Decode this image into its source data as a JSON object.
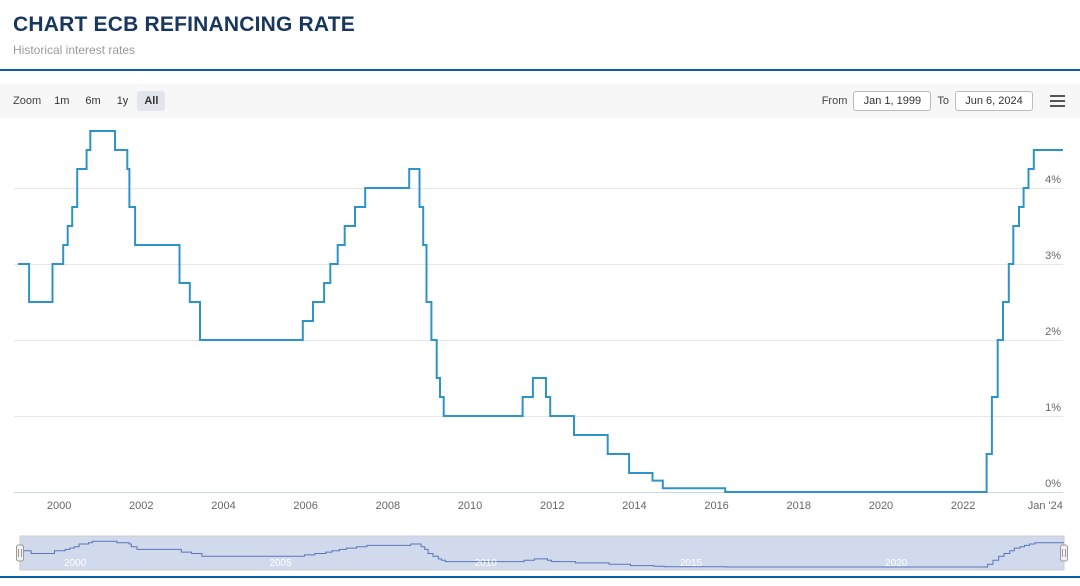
{
  "page": {
    "title": "CHART ECB REFINANCING RATE",
    "subtitle": "Historical interest rates"
  },
  "colors": {
    "accent_divider": "#0d5ea8",
    "title_text": "#17375e",
    "series_line": "#2e93c8",
    "navigator_line": "#5b74b8",
    "gridline": "#e6e6e6",
    "axis_line": "#ccd6eb"
  },
  "toolbar": {
    "zoom_label": "Zoom",
    "zoom_buttons": [
      "1m",
      "6m",
      "1y",
      "All"
    ],
    "active_zoom": "All",
    "from_label": "From",
    "from_value": "Jan 1, 1999",
    "to_label": "To",
    "to_value": "Jun 6, 2024",
    "menu_icon": "hamburger-menu-icon"
  },
  "chart_data": {
    "type": "line",
    "step": "left",
    "title": "",
    "xlabel": "",
    "ylabel": "",
    "legend": false,
    "grid": true,
    "x_range": [
      1999.0,
      2024.43
    ],
    "x_end": 2024.43,
    "y_range": [
      0,
      4.9
    ],
    "y_unit": "%",
    "series": [
      {
        "name": "ECB Refinancing Rate",
        "color": "#2e93c8",
        "points": [
          [
            1999.0,
            3.0
          ],
          [
            1999.27,
            2.5
          ],
          [
            1999.84,
            3.0
          ],
          [
            2000.1,
            3.25
          ],
          [
            2000.21,
            3.5
          ],
          [
            2000.32,
            3.75
          ],
          [
            2000.44,
            4.25
          ],
          [
            2000.67,
            4.5
          ],
          [
            2000.76,
            4.75
          ],
          [
            2001.36,
            4.5
          ],
          [
            2001.66,
            4.25
          ],
          [
            2001.71,
            3.75
          ],
          [
            2001.85,
            3.25
          ],
          [
            2002.93,
            2.75
          ],
          [
            2003.18,
            2.5
          ],
          [
            2003.43,
            2.0
          ],
          [
            2005.93,
            2.25
          ],
          [
            2006.18,
            2.5
          ],
          [
            2006.45,
            2.75
          ],
          [
            2006.6,
            3.0
          ],
          [
            2006.78,
            3.25
          ],
          [
            2006.95,
            3.5
          ],
          [
            2007.2,
            3.75
          ],
          [
            2007.45,
            4.0
          ],
          [
            2008.52,
            4.25
          ],
          [
            2008.77,
            3.75
          ],
          [
            2008.86,
            3.25
          ],
          [
            2008.94,
            2.5
          ],
          [
            2009.06,
            2.0
          ],
          [
            2009.19,
            1.5
          ],
          [
            2009.27,
            1.25
          ],
          [
            2009.36,
            1.0
          ],
          [
            2011.28,
            1.25
          ],
          [
            2011.53,
            1.5
          ],
          [
            2011.85,
            1.25
          ],
          [
            2011.95,
            1.0
          ],
          [
            2012.53,
            0.75
          ],
          [
            2013.35,
            0.5
          ],
          [
            2013.87,
            0.25
          ],
          [
            2014.44,
            0.15
          ],
          [
            2014.69,
            0.05
          ],
          [
            2016.21,
            0.0
          ],
          [
            2022.57,
            0.5
          ],
          [
            2022.7,
            1.25
          ],
          [
            2022.84,
            2.0
          ],
          [
            2022.97,
            2.5
          ],
          [
            2023.11,
            3.0
          ],
          [
            2023.22,
            3.5
          ],
          [
            2023.36,
            3.75
          ],
          [
            2023.47,
            4.0
          ],
          [
            2023.59,
            4.25
          ],
          [
            2023.72,
            4.5
          ]
        ]
      }
    ],
    "y_ticks": [
      {
        "v": 0,
        "label": "0%"
      },
      {
        "v": 1,
        "label": "1%"
      },
      {
        "v": 2,
        "label": "2%"
      },
      {
        "v": 3,
        "label": "3%"
      },
      {
        "v": 4,
        "label": "4%"
      }
    ],
    "x_ticks": [
      {
        "v": 2000,
        "label": "2000"
      },
      {
        "v": 2002,
        "label": "2002"
      },
      {
        "v": 2004,
        "label": "2004"
      },
      {
        "v": 2006,
        "label": "2006"
      },
      {
        "v": 2008,
        "label": "2008"
      },
      {
        "v": 2010,
        "label": "2010"
      },
      {
        "v": 2012,
        "label": "2012"
      },
      {
        "v": 2014,
        "label": "2014"
      },
      {
        "v": 2016,
        "label": "2016"
      },
      {
        "v": 2018,
        "label": "2018"
      },
      {
        "v": 2020,
        "label": "2020"
      },
      {
        "v": 2022,
        "label": "2022"
      },
      {
        "v": 2024,
        "label": "Jan '24"
      }
    ]
  },
  "navigator": {
    "mask_color": "#6685c2",
    "mask_opacity": 0.3,
    "outline_color": "#cccccc",
    "line_color": "#5b74b8",
    "labels": [
      {
        "v": 2000,
        "label": "2000"
      },
      {
        "v": 2005,
        "label": "2005"
      },
      {
        "v": 2010,
        "label": "2010"
      },
      {
        "v": 2015,
        "label": "2015"
      },
      {
        "v": 2020,
        "label": "2020"
      }
    ]
  }
}
